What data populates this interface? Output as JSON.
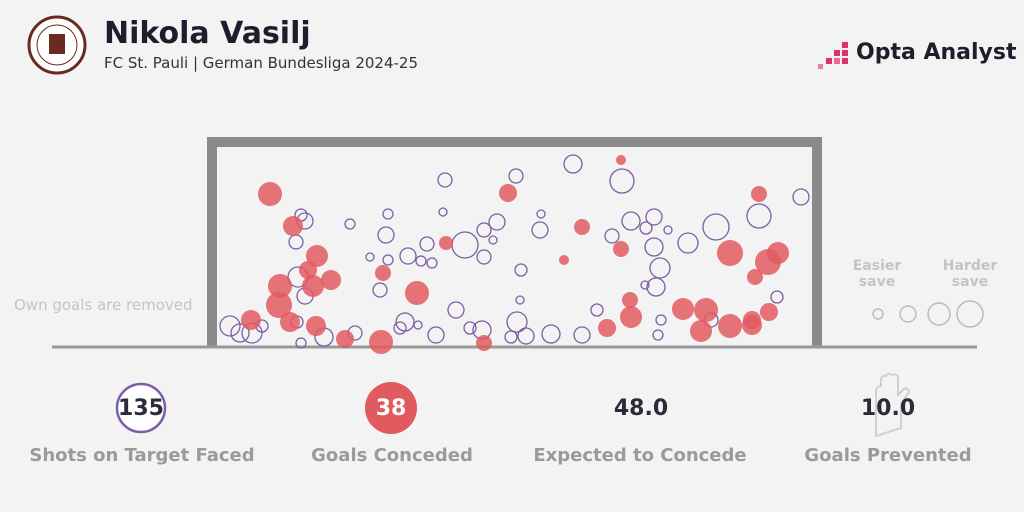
{
  "header": {
    "title": "Nikola Vasilj",
    "subtitle": "FC St. Pauli | German Bundesliga 2024-25",
    "brand": "Opta Analyst"
  },
  "note": "Own goals are removed",
  "legend": {
    "easier": "Easier save",
    "harder": "Harder save"
  },
  "stats": [
    {
      "value": "135",
      "label": "Shots on Target Faced"
    },
    {
      "value": "38",
      "label": "Goals Conceded"
    },
    {
      "value": "48.0",
      "label": "Expected to Concede"
    },
    {
      "value": "10.0",
      "label": "Goals Prevented"
    }
  ]
}
